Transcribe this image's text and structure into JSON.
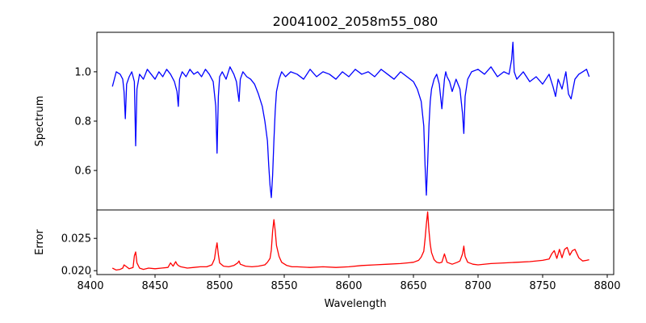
{
  "chart_data": [
    {
      "type": "line",
      "title": "20041002_2058m55_080",
      "ylabel": "Spectrum",
      "xlim": [
        8405,
        8805
      ],
      "ylim": [
        0.44,
        1.16
      ],
      "xticks": [],
      "yticks": [
        0.6,
        0.8,
        1.0
      ],
      "ytick_labels": [
        "0.6",
        "0.8",
        "1.0"
      ],
      "grid": false,
      "series": [
        {
          "color": "#0000ff",
          "x": [
            8417,
            8420,
            8423,
            8425,
            8426,
            8427,
            8428,
            8430,
            8432,
            8434,
            8435,
            8436,
            8438,
            8441,
            8444,
            8447,
            8450,
            8453,
            8456,
            8459,
            8462,
            8465,
            8467,
            8468,
            8469,
            8471,
            8474,
            8477,
            8480,
            8483,
            8486,
            8489,
            8492,
            8495,
            8497,
            8498,
            8499,
            8500,
            8502,
            8505,
            8508,
            8511,
            8513,
            8515,
            8516,
            8518,
            8521,
            8524,
            8527,
            8530,
            8533,
            8535,
            8537,
            8538,
            8539,
            8540,
            8541,
            8542,
            8543,
            8544,
            8546,
            8548,
            8551,
            8555,
            8560,
            8565,
            8570,
            8575,
            8580,
            8585,
            8590,
            8595,
            8600,
            8605,
            8610,
            8615,
            8620,
            8625,
            8630,
            8635,
            8640,
            8645,
            8650,
            8653,
            8656,
            8658,
            8659,
            8660,
            8661,
            8662,
            8663,
            8664,
            8666,
            8668,
            8670,
            8672,
            8674,
            8675,
            8676,
            8678,
            8680,
            8683,
            8686,
            8688,
            8689,
            8690,
            8692,
            8695,
            8700,
            8705,
            8710,
            8715,
            8720,
            8724,
            8726,
            8727,
            8728,
            8730,
            8735,
            8740,
            8745,
            8750,
            8755,
            8758,
            8760,
            8762,
            8765,
            8768,
            8770,
            8772,
            8775,
            8778,
            8781,
            8784,
            8786
          ],
          "values": [
            0.94,
            1.0,
            0.99,
            0.97,
            0.92,
            0.81,
            0.95,
            0.98,
            1.0,
            0.96,
            0.7,
            0.93,
            0.99,
            0.97,
            1.01,
            0.99,
            0.97,
            1.0,
            0.98,
            1.01,
            0.99,
            0.96,
            0.92,
            0.86,
            0.97,
            1.0,
            0.98,
            1.01,
            0.99,
            1.0,
            0.98,
            1.01,
            0.99,
            0.96,
            0.86,
            0.67,
            0.9,
            0.98,
            1.0,
            0.97,
            1.02,
            0.99,
            0.96,
            0.88,
            0.97,
            1.0,
            0.98,
            0.97,
            0.95,
            0.91,
            0.86,
            0.8,
            0.72,
            0.62,
            0.54,
            0.49,
            0.58,
            0.72,
            0.84,
            0.92,
            0.97,
            1.0,
            0.98,
            1.0,
            0.99,
            0.97,
            1.01,
            0.98,
            1.0,
            0.99,
            0.97,
            1.0,
            0.98,
            1.01,
            0.99,
            1.0,
            0.98,
            1.01,
            0.99,
            0.97,
            1.0,
            0.98,
            0.96,
            0.93,
            0.88,
            0.78,
            0.62,
            0.5,
            0.63,
            0.78,
            0.88,
            0.93,
            0.97,
            0.99,
            0.95,
            0.85,
            0.97,
            1.0,
            0.98,
            0.96,
            0.92,
            0.97,
            0.93,
            0.83,
            0.75,
            0.9,
            0.97,
            1.0,
            1.01,
            0.99,
            1.02,
            0.98,
            1.0,
            0.99,
            1.05,
            1.12,
            1.0,
            0.97,
            1.0,
            0.96,
            0.98,
            0.95,
            0.99,
            0.94,
            0.9,
            0.97,
            0.93,
            1.0,
            0.91,
            0.89,
            0.97,
            0.99,
            1.0,
            1.01,
            0.98
          ]
        }
      ]
    },
    {
      "type": "line",
      "xlabel": "Wavelength",
      "ylabel": "Error",
      "xlim": [
        8405,
        8805
      ],
      "ylim": [
        0.0194,
        0.0294
      ],
      "xticks": [
        8400,
        8450,
        8500,
        8550,
        8600,
        8650,
        8700,
        8750,
        8800
      ],
      "xtick_labels": [
        "8400",
        "8450",
        "8500",
        "8550",
        "8600",
        "8650",
        "8700",
        "8750",
        "8800"
      ],
      "yticks": [
        0.02,
        0.025
      ],
      "ytick_labels": [
        "0.020",
        "0.025"
      ],
      "grid": false,
      "series": [
        {
          "color": "#ff0000",
          "x": [
            8417,
            8420,
            8423,
            8425,
            8426,
            8428,
            8430,
            8433,
            8434,
            8435,
            8436,
            8438,
            8441,
            8445,
            8450,
            8455,
            8460,
            8462,
            8464,
            8466,
            8467,
            8468,
            8470,
            8475,
            8480,
            8485,
            8490,
            8494,
            8496,
            8497,
            8498,
            8499,
            8500,
            8503,
            8507,
            8511,
            8514,
            8515,
            8516,
            8520,
            8525,
            8530,
            8535,
            8537,
            8539,
            8540,
            8541,
            8542,
            8543,
            8544,
            8546,
            8548,
            8552,
            8556,
            8560,
            8570,
            8580,
            8590,
            8600,
            8610,
            8620,
            8630,
            8640,
            8645,
            8650,
            8654,
            8656,
            8658,
            8659,
            8660,
            8661,
            8662,
            8663,
            8664,
            8666,
            8668,
            8670,
            8672,
            8674,
            8676,
            8680,
            8684,
            8686,
            8688,
            8689,
            8690,
            8692,
            8696,
            8700,
            8710,
            8720,
            8730,
            8740,
            8750,
            8755,
            8757,
            8759,
            8761,
            8763,
            8765,
            8767,
            8769,
            8771,
            8773,
            8775,
            8778,
            8781,
            8784,
            8786
          ],
          "values": [
            0.0204,
            0.0201,
            0.0202,
            0.0204,
            0.0209,
            0.0206,
            0.0203,
            0.0205,
            0.0223,
            0.0229,
            0.0212,
            0.0204,
            0.0202,
            0.0204,
            0.0203,
            0.0204,
            0.0205,
            0.0212,
            0.0207,
            0.0214,
            0.021,
            0.0208,
            0.0206,
            0.0204,
            0.0205,
            0.0206,
            0.0206,
            0.0209,
            0.0218,
            0.0232,
            0.0243,
            0.0225,
            0.0212,
            0.0207,
            0.0206,
            0.0208,
            0.0212,
            0.0215,
            0.021,
            0.0207,
            0.0206,
            0.0207,
            0.0209,
            0.0213,
            0.0219,
            0.0232,
            0.0261,
            0.0279,
            0.0262,
            0.0239,
            0.0222,
            0.0213,
            0.0208,
            0.0206,
            0.0206,
            0.0205,
            0.0206,
            0.0205,
            0.0206,
            0.0208,
            0.0209,
            0.021,
            0.0211,
            0.0212,
            0.0213,
            0.0216,
            0.0221,
            0.023,
            0.0249,
            0.0272,
            0.0291,
            0.0262,
            0.0241,
            0.0228,
            0.0217,
            0.0213,
            0.0212,
            0.0213,
            0.0226,
            0.0213,
            0.021,
            0.0213,
            0.0215,
            0.0226,
            0.0238,
            0.0222,
            0.0213,
            0.021,
            0.0209,
            0.0211,
            0.0212,
            0.0213,
            0.0214,
            0.0216,
            0.0218,
            0.0226,
            0.0231,
            0.0219,
            0.0233,
            0.022,
            0.0233,
            0.0236,
            0.0224,
            0.0231,
            0.0233,
            0.022,
            0.0215,
            0.0216,
            0.0217
          ]
        }
      ]
    }
  ]
}
